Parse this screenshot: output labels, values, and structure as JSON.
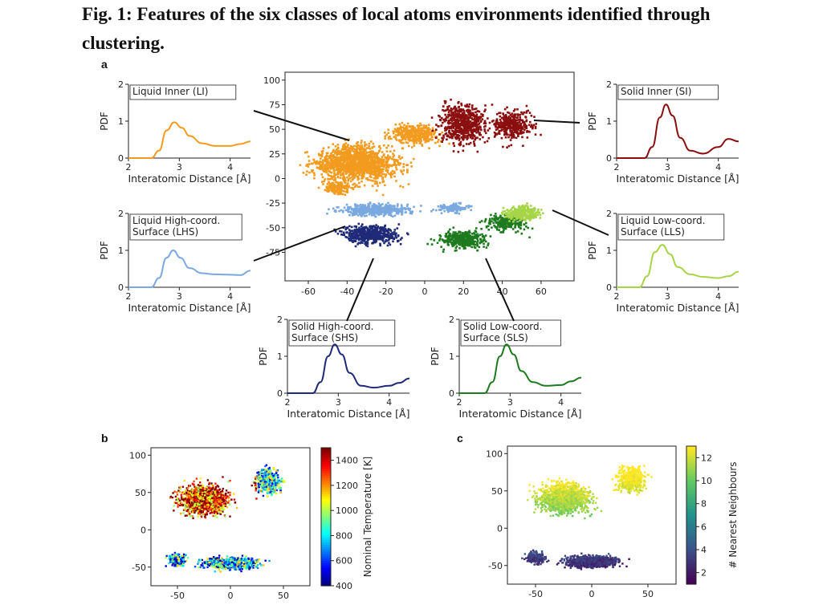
{
  "figure": {
    "title": "Fig. 1: Features of the six classes of local atoms environments identified through clustering.",
    "panel_a": "a",
    "panel_b": "b",
    "panel_c": "c"
  },
  "colors": {
    "LI": "#f39b1f",
    "SI": "#8b0f0f",
    "LHS": "#7aa9e0",
    "LLS": "#a6d548",
    "SHS": "#1f2a78",
    "SLS": "#1e7a1e"
  },
  "chart_data": [
    {
      "id": "a-main",
      "type": "scatter",
      "title": "",
      "xlabel": "",
      "ylabel": "",
      "xlim": [
        -72,
        77
      ],
      "ylim": [
        -104,
        108
      ],
      "xticks": [
        -60,
        -40,
        -20,
        0,
        20,
        40,
        60
      ],
      "yticks": [
        -75,
        -50,
        -25,
        0,
        25,
        50,
        75,
        100
      ],
      "series": [
        {
          "cls": "LI",
          "blobs": [
            [
              -35,
              15,
              28,
              25,
              1400
            ],
            [
              -5,
              45,
              18,
              15,
              350
            ],
            [
              -45,
              -10,
              10,
              8,
              120
            ]
          ]
        },
        {
          "cls": "SI",
          "blobs": [
            [
              20,
              55,
              16,
              28,
              600
            ],
            [
              45,
              55,
              14,
              20,
              350
            ]
          ]
        },
        {
          "cls": "LHS",
          "blobs": [
            [
              -25,
              -32,
              25,
              8,
              450
            ],
            [
              15,
              -30,
              12,
              6,
              120
            ]
          ]
        },
        {
          "cls": "SHS",
          "blobs": [
            [
              -28,
              -57,
              20,
              12,
              500
            ]
          ]
        },
        {
          "cls": "SLS",
          "blobs": [
            [
              20,
              -62,
              16,
              12,
              380
            ],
            [
              42,
              -45,
              14,
              12,
              220
            ]
          ]
        },
        {
          "cls": "LLS",
          "blobs": [
            [
              50,
              -35,
              12,
              10,
              280
            ]
          ]
        }
      ]
    },
    {
      "id": "a-pdf-li",
      "type": "line",
      "label": "Liquid Inner (LI)",
      "cls": "LI",
      "xlabel": "Interatomic Distance [Å]",
      "ylabel": "PDF",
      "xlim": [
        2,
        4.4
      ],
      "ylim": [
        0,
        2
      ],
      "xticks": [
        2,
        3,
        4
      ],
      "yticks": [
        0,
        1,
        2
      ],
      "x": [
        2.0,
        2.45,
        2.6,
        2.75,
        2.9,
        3.05,
        3.2,
        3.45,
        3.7,
        4.0,
        4.2,
        4.4
      ],
      "y": [
        0,
        0,
        0.2,
        0.75,
        0.97,
        0.82,
        0.6,
        0.4,
        0.33,
        0.33,
        0.38,
        0.45
      ]
    },
    {
      "id": "a-pdf-si",
      "type": "line",
      "label": "Solid Inner (SI)",
      "cls": "SI",
      "xlabel": "Interatomic Distance [Å]",
      "ylabel": "PDF",
      "xlim": [
        2,
        4.4
      ],
      "ylim": [
        0,
        2
      ],
      "xticks": [
        2,
        3,
        4
      ],
      "yticks": [
        0,
        1,
        2
      ],
      "x": [
        2.0,
        2.55,
        2.7,
        2.85,
        2.97,
        3.1,
        3.25,
        3.45,
        3.7,
        4.0,
        4.2,
        4.4
      ],
      "y": [
        0,
        0,
        0.3,
        1.1,
        1.45,
        1.15,
        0.55,
        0.2,
        0.12,
        0.3,
        0.52,
        0.45
      ]
    },
    {
      "id": "a-pdf-lhs",
      "type": "line",
      "label": "Liquid High-coord. Surface (LHS)",
      "cls": "LHS",
      "xlabel": "Interatomic Distance [Å]",
      "ylabel": "PDF",
      "xlim": [
        2,
        4.4
      ],
      "ylim": [
        0,
        2
      ],
      "xticks": [
        2,
        3,
        4
      ],
      "yticks": [
        0,
        1,
        2
      ],
      "x": [
        2.0,
        2.45,
        2.6,
        2.75,
        2.88,
        3.02,
        3.2,
        3.45,
        3.7,
        4.0,
        4.2,
        4.4
      ],
      "y": [
        0,
        0,
        0.25,
        0.8,
        1.0,
        0.8,
        0.52,
        0.38,
        0.35,
        0.34,
        0.33,
        0.45
      ]
    },
    {
      "id": "a-pdf-lls",
      "type": "line",
      "label": "Liquid Low-coord. Surface (LLS)",
      "cls": "LLS",
      "xlabel": "Interatomic Distance [Å]",
      "ylabel": "PDF",
      "xlim": [
        2,
        4.4
      ],
      "ylim": [
        0,
        2
      ],
      "xticks": [
        2,
        3,
        4
      ],
      "yticks": [
        0,
        1,
        2
      ],
      "x": [
        2.0,
        2.45,
        2.6,
        2.75,
        2.9,
        3.05,
        3.2,
        3.45,
        3.7,
        4.0,
        4.2,
        4.4
      ],
      "y": [
        0,
        0,
        0.3,
        0.95,
        1.15,
        0.9,
        0.55,
        0.35,
        0.28,
        0.25,
        0.3,
        0.42
      ]
    },
    {
      "id": "a-pdf-shs",
      "type": "line",
      "label": "Solid High-coord. Surface (SHS)",
      "cls": "SHS",
      "xlabel": "Interatomic Distance [Å]",
      "ylabel": "PDF",
      "xlim": [
        2,
        4.4
      ],
      "ylim": [
        0,
        2
      ],
      "xticks": [
        2,
        3,
        4
      ],
      "yticks": [
        0,
        1,
        2
      ],
      "x": [
        2.0,
        2.5,
        2.65,
        2.8,
        2.93,
        3.07,
        3.22,
        3.45,
        3.7,
        4.0,
        4.2,
        4.4
      ],
      "y": [
        0,
        0,
        0.3,
        1.0,
        1.32,
        1.05,
        0.55,
        0.2,
        0.15,
        0.2,
        0.28,
        0.4
      ]
    },
    {
      "id": "a-pdf-sls",
      "type": "line",
      "label": "Solid Low-coord. Surface (SLS)",
      "cls": "SLS",
      "xlabel": "Interatomic Distance [Å]",
      "ylabel": "PDF",
      "xlim": [
        2,
        4.4
      ],
      "ylim": [
        0,
        2
      ],
      "xticks": [
        2,
        3,
        4
      ],
      "yticks": [
        0,
        1,
        2
      ],
      "x": [
        2.0,
        2.5,
        2.65,
        2.8,
        2.93,
        3.07,
        3.22,
        3.45,
        3.7,
        4.0,
        4.2,
        4.4
      ],
      "y": [
        0,
        0,
        0.3,
        1.0,
        1.32,
        1.05,
        0.6,
        0.3,
        0.2,
        0.22,
        0.32,
        0.42
      ]
    },
    {
      "id": "b",
      "type": "scatter",
      "title": "",
      "xlabel": "",
      "ylabel": "",
      "xlim": [
        -75,
        75
      ],
      "ylim": [
        -75,
        110
      ],
      "xticks": [
        -50,
        0,
        50
      ],
      "yticks": [
        -50,
        0,
        50,
        100
      ],
      "colorbar": {
        "label": "Nominal Temperature [K]",
        "min": 400,
        "max": 1500,
        "ticks": [
          400,
          600,
          800,
          1000,
          1200,
          1400
        ],
        "cmap": "jet"
      }
    },
    {
      "id": "c",
      "type": "scatter",
      "title": "",
      "xlabel": "",
      "ylabel": "",
      "xlim": [
        -75,
        75
      ],
      "ylim": [
        -75,
        110
      ],
      "xticks": [
        -50,
        0,
        50
      ],
      "yticks": [
        -50,
        0,
        50,
        100
      ],
      "colorbar": {
        "label": "# Nearest Neighbours",
        "min": 1,
        "max": 13,
        "ticks": [
          2,
          4,
          6,
          8,
          10,
          12
        ],
        "cmap": "viridis"
      }
    }
  ]
}
